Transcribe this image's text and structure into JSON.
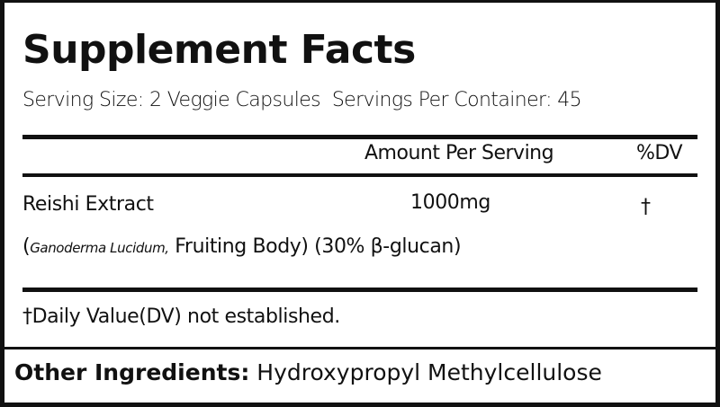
{
  "label": {
    "title": "Supplement Facts",
    "serving_size": "Serving Size: 2 Veggie Capsules",
    "servings_per_container": "Servings Per Container: 45",
    "header": {
      "amount": "Amount Per Serving",
      "dv": "%DV"
    },
    "ingredients": [
      {
        "name": "Reishi Extract",
        "amount": "1000mg",
        "dv": "†",
        "detail_open": "(",
        "detail_italic": "Ganoderma Lucidum,",
        "detail_rest": " Fruiting Body) (30% β-glucan)"
      }
    ],
    "footnote": "†Daily Value(DV) not established.",
    "other_ingredients_label": "Other Ingredients:",
    "other_ingredients": "Hydroxypropyl Methylcellulose"
  }
}
